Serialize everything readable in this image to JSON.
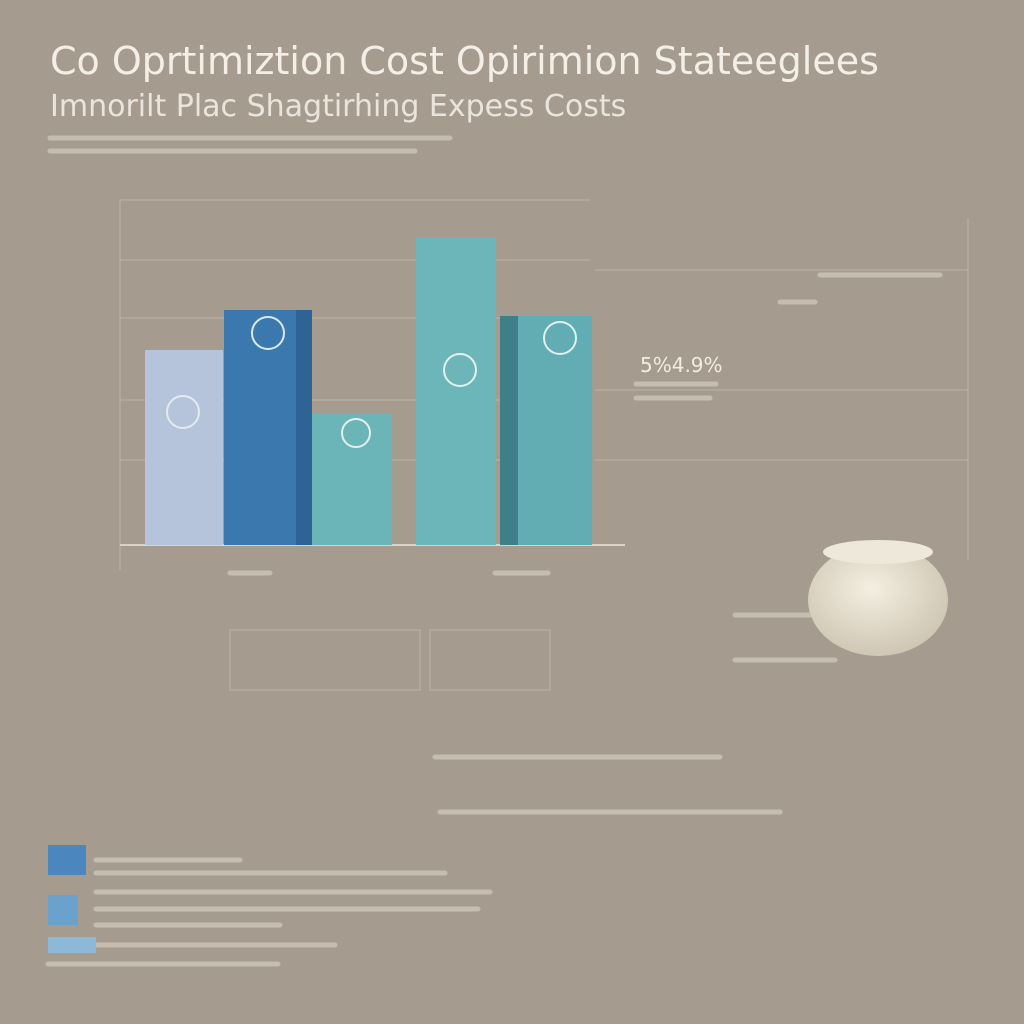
{
  "header": {
    "title": "Co Oprtimiztion Cost Opirimion Stateeglees",
    "subtitle": "Imnorilt Plac Shagtirhing Expess Costs"
  },
  "callout": {
    "label": "5%4.9%"
  }
}
